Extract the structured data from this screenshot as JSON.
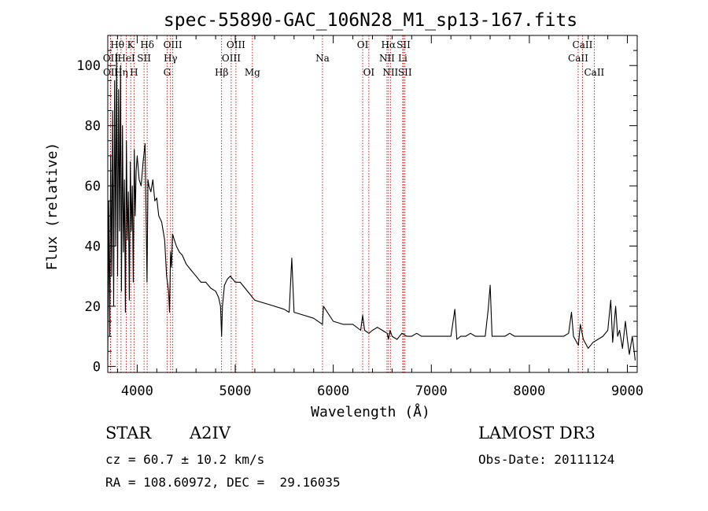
{
  "chart_data": {
    "type": "line",
    "title": "spec-55890-GAC_106N28_M1_sp13-167.fits",
    "xlabel": "Wavelength (Å)",
    "ylabel": "Flux (relative)",
    "xlim": [
      3700,
      9100
    ],
    "ylim": [
      -2,
      110
    ],
    "xticks": [
      4000,
      5000,
      6000,
      7000,
      8000,
      9000
    ],
    "yticks": [
      0,
      20,
      40,
      60,
      80,
      100
    ],
    "series": [
      {
        "name": "flux",
        "x": [
          3700,
          3710,
          3720,
          3730,
          3740,
          3750,
          3760,
          3770,
          3780,
          3790,
          3800,
          3810,
          3820,
          3830,
          3840,
          3850,
          3860,
          3870,
          3880,
          3890,
          3900,
          3910,
          3920,
          3930,
          3940,
          3950,
          3960,
          3970,
          3980,
          3990,
          4000,
          4020,
          4040,
          4060,
          4080,
          4100,
          4110,
          4120,
          4140,
          4160,
          4180,
          4200,
          4220,
          4250,
          4280,
          4300,
          4320,
          4330,
          4340,
          4350,
          4360,
          4380,
          4400,
          4430,
          4460,
          4500,
          4550,
          4600,
          4650,
          4700,
          4750,
          4800,
          4830,
          4850,
          4861,
          4870,
          4890,
          4920,
          4950,
          5000,
          5050,
          5100,
          5150,
          5200,
          5300,
          5400,
          5500,
          5550,
          5577,
          5600,
          5700,
          5800,
          5890,
          5900,
          6000,
          6100,
          6200,
          6280,
          6300,
          6320,
          6363,
          6400,
          6450,
          6500,
          6550,
          6563,
          6580,
          6600,
          6650,
          6700,
          6750,
          6800,
          6850,
          6900,
          6950,
          7000,
          7050,
          7100,
          7150,
          7200,
          7240,
          7260,
          7300,
          7350,
          7400,
          7450,
          7500,
          7550,
          7580,
          7600,
          7620,
          7650,
          7700,
          7750,
          7800,
          7850,
          7900,
          7950,
          8000,
          8050,
          8100,
          8150,
          8200,
          8250,
          8300,
          8350,
          8400,
          8430,
          8450,
          8500,
          8520,
          8550,
          8600,
          8650,
          8700,
          8750,
          8800,
          8830,
          8850,
          8880,
          8900,
          8920,
          8950,
          8980,
          9000,
          9020,
          9050,
          9080
        ],
        "y": [
          2,
          55,
          10,
          70,
          30,
          85,
          20,
          95,
          40,
          104,
          30,
          92,
          45,
          100,
          25,
          80,
          38,
          62,
          18,
          75,
          42,
          58,
          22,
          68,
          45,
          60,
          28,
          72,
          50,
          65,
          70,
          62,
          60,
          68,
          74,
          28,
          62,
          60,
          58,
          62,
          55,
          56,
          50,
          48,
          42,
          30,
          25,
          18,
          38,
          33,
          44,
          42,
          40,
          38,
          37,
          34,
          32,
          30,
          28,
          28,
          26,
          25,
          23,
          20,
          10,
          20,
          27,
          29,
          30,
          28,
          28,
          26,
          24,
          22,
          21,
          20,
          19,
          18,
          36,
          18,
          17,
          16,
          14,
          20,
          15,
          14,
          14,
          12,
          17,
          12,
          11,
          12,
          13,
          12,
          11,
          9,
          12,
          10,
          9,
          11,
          10,
          10,
          11,
          10,
          10,
          10,
          10,
          10,
          10,
          10,
          19,
          9,
          10,
          10,
          11,
          10,
          10,
          10,
          19,
          27,
          10,
          10,
          10,
          10,
          11,
          10,
          10,
          10,
          10,
          10,
          10,
          10,
          10,
          10,
          10,
          10,
          11,
          18,
          10,
          7,
          14,
          9,
          6,
          8,
          9,
          10,
          12,
          22,
          8,
          20,
          10,
          12,
          6,
          15,
          9,
          4,
          10,
          2
        ]
      }
    ],
    "lines": [
      {
        "label": "Hθ",
        "x": 3797,
        "row": 1
      },
      {
        "label": "K",
        "x": 3934,
        "row": 1
      },
      {
        "label": "Hδ",
        "x": 4102,
        "row": 1
      },
      {
        "label": "OIII",
        "x": 4363,
        "row": 1
      },
      {
        "label": "OIII",
        "x": 5007,
        "row": 1
      },
      {
        "label": "OI",
        "x": 6300,
        "row": 1
      },
      {
        "label": "Hα",
        "x": 6563,
        "row": 1
      },
      {
        "label": "SII",
        "x": 6717,
        "row": 1
      },
      {
        "label": "CaII",
        "x": 8542,
        "row": 1
      },
      {
        "label": "OII",
        "x": 3727,
        "row": 2
      },
      {
        "label": "HeI",
        "x": 3889,
        "row": 2
      },
      {
        "label": "SII",
        "x": 4070,
        "row": 2
      },
      {
        "label": "Hγ",
        "x": 4340,
        "row": 2
      },
      {
        "label": "OIII",
        "x": 4959,
        "row": 2
      },
      {
        "label": "Na",
        "x": 5890,
        "row": 2
      },
      {
        "label": "NII",
        "x": 6548,
        "row": 2
      },
      {
        "label": "Li",
        "x": 6708,
        "row": 2
      },
      {
        "label": "CaII",
        "x": 8498,
        "row": 2
      },
      {
        "label": "OII",
        "x": 3729,
        "row": 3
      },
      {
        "label": "Hη",
        "x": 3835,
        "row": 3
      },
      {
        "label": "H",
        "x": 3968,
        "row": 3
      },
      {
        "label": "G",
        "x": 4305,
        "row": 3
      },
      {
        "label": "Hβ",
        "x": 4861,
        "row": 3
      },
      {
        "label": "Mg",
        "x": 5175,
        "row": 3
      },
      {
        "label": "OI",
        "x": 6363,
        "row": 3
      },
      {
        "label": "NII",
        "x": 6583,
        "row": 3
      },
      {
        "label": "SII",
        "x": 6731,
        "row": 3
      },
      {
        "label": "CaII",
        "x": 8662,
        "row": 3
      }
    ],
    "line_color": "#cc0000",
    "spectrum_color": "#000000"
  },
  "info": {
    "object_class": "STAR",
    "subclass": "A2IV",
    "survey": "LAMOST DR3",
    "cz": "cz = 60.7 ± 10.2 km/s",
    "obs_date": "Obs-Date: 20111124",
    "coords": "RA = 108.60972, DEC =  29.16035"
  }
}
